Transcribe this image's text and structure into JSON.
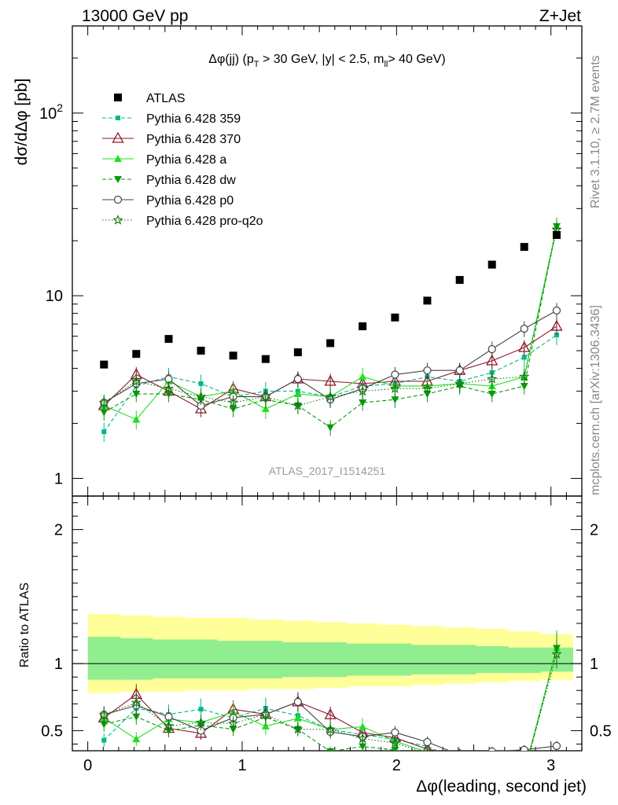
{
  "header": {
    "energy": "13000 GeV pp",
    "process": "Z+Jet"
  },
  "side": {
    "rivet": "Rivet 3.1.10, ≥ 2.7M events",
    "site": "mcplots.cern.ch [arXiv:1306.3436]"
  },
  "chart_data": {
    "type": "scatter",
    "title": "Δφ(jj) (p_T > 30 GeV, |y| < 2.5, m_ll > 40 GeV)",
    "title_parts": [
      "Δφ(jj) (p",
      "T",
      " > 30 GeV, |y| < 2.5, m",
      "ll",
      "> 40 GeV)"
    ],
    "analysis_id": "ATLAS_2017_I1514251",
    "xlabel": "Δφ(leading, second jet)",
    "ylabel_top": "dσ/dΔφ [pb]",
    "ylabel_bottom": "Ratio to ATLAS",
    "xlim": [
      -0.1,
      3.2
    ],
    "ylim_top": [
      0.8,
      300
    ],
    "ylog_top": true,
    "ylim_bottom": [
      0.35,
      2.25
    ],
    "legend_position": "top-left",
    "x_ticks": [
      "0",
      "1",
      "2",
      "3"
    ],
    "y_ticks_top": [
      "1",
      "10",
      "10^2"
    ],
    "y_ticks_bottom": [
      "0.5",
      "1",
      "2"
    ],
    "x": [
      0.105,
      0.314,
      0.524,
      0.733,
      0.942,
      1.152,
      1.361,
      1.571,
      1.78,
      1.99,
      2.199,
      2.409,
      2.618,
      2.827,
      3.037
    ],
    "atlas": {
      "name": "ATLAS",
      "color": "#000000",
      "values": [
        4.2,
        4.8,
        5.8,
        5.0,
        4.7,
        4.5,
        4.9,
        5.5,
        6.8,
        7.6,
        9.4,
        12.2,
        14.8,
        18.5,
        21.5
      ]
    },
    "series": [
      {
        "name": "Pythia 6.428 359",
        "color": "#00b88a",
        "dash": "5,3",
        "marker": "square-small",
        "values": [
          1.8,
          3.2,
          3.6,
          3.3,
          2.8,
          3.0,
          3.0,
          2.8,
          3.2,
          3.3,
          3.6,
          3.4,
          3.8,
          4.6,
          6.1
        ],
        "err": 0.12
      },
      {
        "name": "Pythia 6.428 370",
        "color": "#8b1a2b",
        "dash": "",
        "marker": "triangle-open",
        "values": [
          2.5,
          3.7,
          3.0,
          2.4,
          3.1,
          2.8,
          3.5,
          3.4,
          3.3,
          3.4,
          3.4,
          3.9,
          4.4,
          5.2,
          6.8
        ],
        "err": 0.1
      },
      {
        "name": "Pythia 6.428 a",
        "color": "#22dd22",
        "dash": "",
        "marker": "triangle",
        "values": [
          2.5,
          2.1,
          3.4,
          2.8,
          3.0,
          2.4,
          2.9,
          2.8,
          3.6,
          3.2,
          3.2,
          3.3,
          3.2,
          3.6,
          24.0
        ],
        "err": 0.12
      },
      {
        "name": "Pythia 6.428 dw",
        "color": "#0a9a0a",
        "dash": "5,3",
        "marker": "triangle-down",
        "values": [
          2.3,
          2.9,
          2.9,
          2.7,
          2.4,
          2.7,
          2.5,
          1.9,
          2.6,
          2.7,
          2.9,
          3.2,
          2.9,
          3.2,
          24.0
        ],
        "err": 0.1
      },
      {
        "name": "Pythia 6.428 p0",
        "color": "#444444",
        "dash": "",
        "marker": "circle-open",
        "values": [
          2.6,
          3.3,
          3.5,
          2.5,
          2.8,
          2.8,
          3.5,
          2.7,
          3.1,
          3.7,
          3.9,
          3.9,
          5.1,
          6.6,
          8.3
        ],
        "err": 0.1
      },
      {
        "name": "Pythia 6.428 pro-q2o",
        "color": "#117711",
        "dash": "1.5,2.5",
        "marker": "star",
        "values": [
          2.6,
          3.4,
          3.1,
          2.8,
          2.6,
          2.8,
          2.5,
          2.8,
          3.0,
          3.1,
          3.1,
          3.3,
          3.5,
          3.6,
          23.0
        ],
        "err": 0.1
      }
    ],
    "bands": {
      "inner": {
        "color": "#90ee90",
        "lo": [
          0.88,
          0.88,
          0.89,
          0.89,
          0.89,
          0.89,
          0.9,
          0.9,
          0.91,
          0.91,
          0.92,
          0.92,
          0.93,
          0.93,
          0.94
        ],
        "hi": [
          1.2,
          1.19,
          1.18,
          1.18,
          1.17,
          1.17,
          1.16,
          1.16,
          1.15,
          1.15,
          1.14,
          1.14,
          1.13,
          1.12,
          1.12
        ]
      },
      "outer": {
        "color": "#ffff99",
        "lo": [
          0.78,
          0.79,
          0.79,
          0.8,
          0.8,
          0.81,
          0.81,
          0.82,
          0.83,
          0.83,
          0.84,
          0.85,
          0.86,
          0.87,
          0.88
        ],
        "hi": [
          1.37,
          1.36,
          1.35,
          1.34,
          1.34,
          1.33,
          1.32,
          1.31,
          1.3,
          1.29,
          1.28,
          1.27,
          1.26,
          1.24,
          1.22
        ]
      }
    }
  }
}
